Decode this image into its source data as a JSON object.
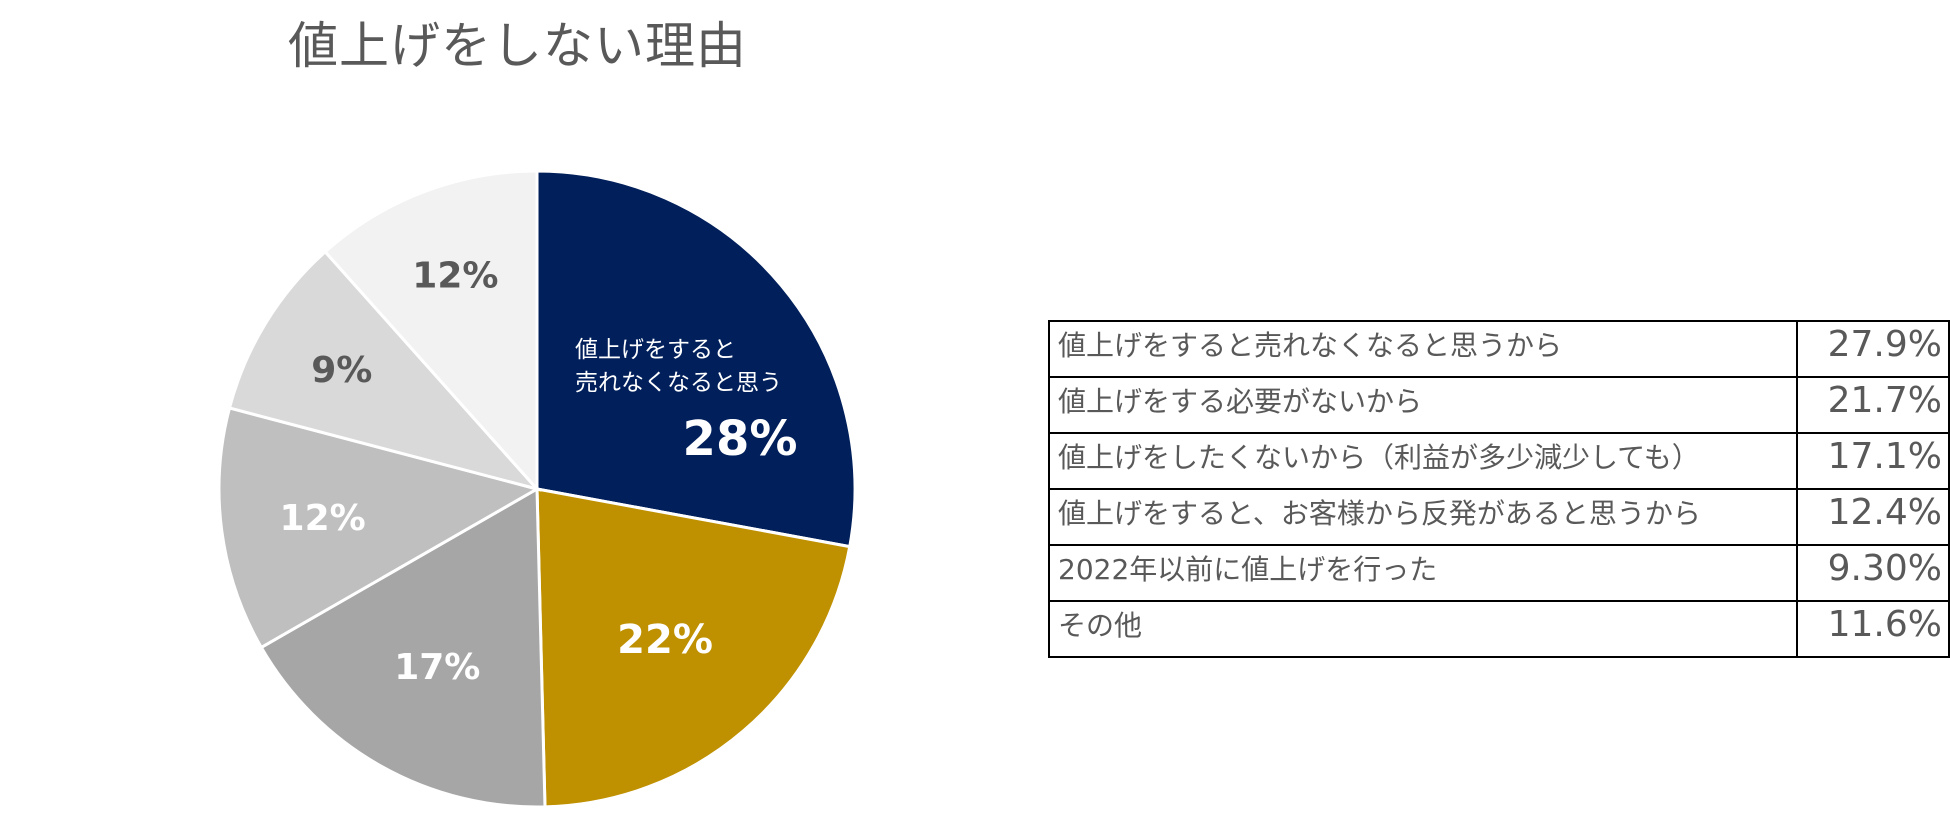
{
  "title": "値上げをしない理由",
  "colors": {
    "navy": "#001F5B",
    "gold": "#BF9000",
    "gray_dark": "#A6A6A6",
    "gray_mid": "#BFBFBF",
    "gray_light": "#D9D9D9",
    "gray_lightest": "#F2F2F2",
    "text_gray": "#595959",
    "white": "#FFFFFF"
  },
  "chart_data": {
    "type": "pie",
    "title": "値上げをしない理由",
    "start_angle_deg": 0,
    "direction": "clockwise",
    "slices": [
      {
        "label": "値上げをすると売れなくなると思うから",
        "value": 27.9,
        "display": "28%",
        "inner_label_lines": [
          "値上げをすると",
          "売れなくなると思う"
        ],
        "color": "#001F5B",
        "label_color": "#FFFFFF"
      },
      {
        "label": "値上げをする必要がないから",
        "value": 21.7,
        "display": "22%",
        "color": "#BF9000",
        "label_color": "#FFFFFF"
      },
      {
        "label": "値上げをしたくないから（利益が多少減少しても）",
        "value": 17.1,
        "display": "17%",
        "color": "#A6A6A6",
        "label_color": "#FFFFFF"
      },
      {
        "label": "値上げをすると、お客様から反発があると思うから",
        "value": 12.4,
        "display": "12%",
        "color": "#BFBFBF",
        "label_color": "#FFFFFF"
      },
      {
        "label": "2022年以前に値上げを行った",
        "value": 9.3,
        "display": "9%",
        "color": "#D9D9D9",
        "label_color": "#595959"
      },
      {
        "label": "その他",
        "value": 11.6,
        "display": "12%",
        "color": "#F2F2F2",
        "label_color": "#595959"
      }
    ]
  },
  "table": {
    "rows": [
      {
        "label": "値上げをすると売れなくなると思うから",
        "value": "27.9%"
      },
      {
        "label": "値上げをする必要がないから",
        "value": "21.7%"
      },
      {
        "label": "値上げをしたくないから（利益が多少減少しても）",
        "value": "17.1%"
      },
      {
        "label": "値上げをすると、お客様から反発があると思うから",
        "value": "12.4%"
      },
      {
        "label": "2022年以前に値上げを行った",
        "value": "9.30%"
      },
      {
        "label": "その他",
        "value": "11.6%"
      }
    ]
  }
}
